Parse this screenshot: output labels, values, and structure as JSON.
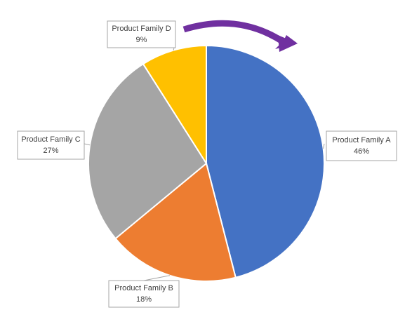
{
  "chart_data": {
    "type": "pie",
    "categories": [
      "Product Family A",
      "Product Family B",
      "Product Family C",
      "Product Family D"
    ],
    "values": [
      46,
      18,
      27,
      9
    ],
    "value_labels": [
      "46%",
      "18%",
      "27%",
      "9%"
    ],
    "colors": [
      "#4472c4",
      "#ed7d31",
      "#a5a5a5",
      "#ffc000"
    ]
  }
}
